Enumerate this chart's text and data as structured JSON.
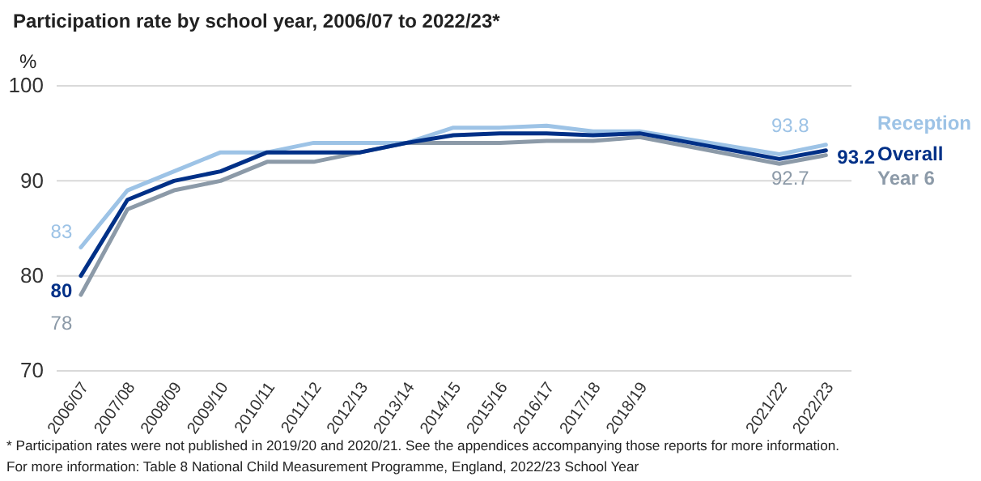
{
  "chart_data": {
    "type": "line",
    "title": "Participation rate by school year, 2006/07 to 2022/23*",
    "ylabel": "%",
    "categories": [
      "2006/07",
      "2007/08",
      "2008/09",
      "2009/10",
      "2010/11",
      "2011/12",
      "2012/13",
      "2013/14",
      "2014/15",
      "2015/16",
      "2016/17",
      "2017/18",
      "2018/19",
      null,
      null,
      "2021/22",
      "2022/23"
    ],
    "ylim": [
      70,
      100
    ],
    "yticks": [
      70,
      80,
      90,
      100
    ],
    "grid": "y",
    "series": [
      {
        "name": "Reception",
        "color": "#9dc3e6",
        "values": [
          83,
          89,
          91,
          93,
          93,
          94,
          94,
          94,
          95.6,
          95.6,
          95.8,
          95.2,
          95.2,
          null,
          null,
          92.8,
          93.8
        ],
        "value_labels": [
          "83",
          null,
          null,
          null,
          null,
          null,
          null,
          null,
          null,
          null,
          null,
          null,
          null,
          null,
          null,
          null,
          "93.8"
        ]
      },
      {
        "name": "Year 6",
        "color": "#8c9aa8",
        "values": [
          78,
          87,
          89,
          90,
          92,
          92,
          93,
          94,
          94,
          94,
          94.2,
          94.2,
          94.6,
          null,
          null,
          91.8,
          92.7
        ],
        "value_labels": [
          "78",
          null,
          null,
          null,
          null,
          null,
          null,
          null,
          null,
          null,
          null,
          null,
          null,
          null,
          null,
          null,
          "92.7"
        ]
      },
      {
        "name": "Overall",
        "color": "#003087",
        "values": [
          80,
          88,
          90,
          91,
          93,
          93,
          93,
          94,
          94.8,
          95,
          95,
          94.8,
          95,
          null,
          null,
          92.3,
          93.2
        ],
        "value_labels": [
          "80",
          null,
          null,
          null,
          null,
          null,
          null,
          null,
          null,
          null,
          null,
          null,
          null,
          null,
          null,
          null,
          "93.2"
        ]
      }
    ],
    "annotations": [
      "* Participation rates were not published in 2019/20 and 2020/21. See the appendices accompanying those reports for more information.",
      "For more information: Table 8 National Child Measurement Programme, England, 2022/23 School Year"
    ]
  }
}
